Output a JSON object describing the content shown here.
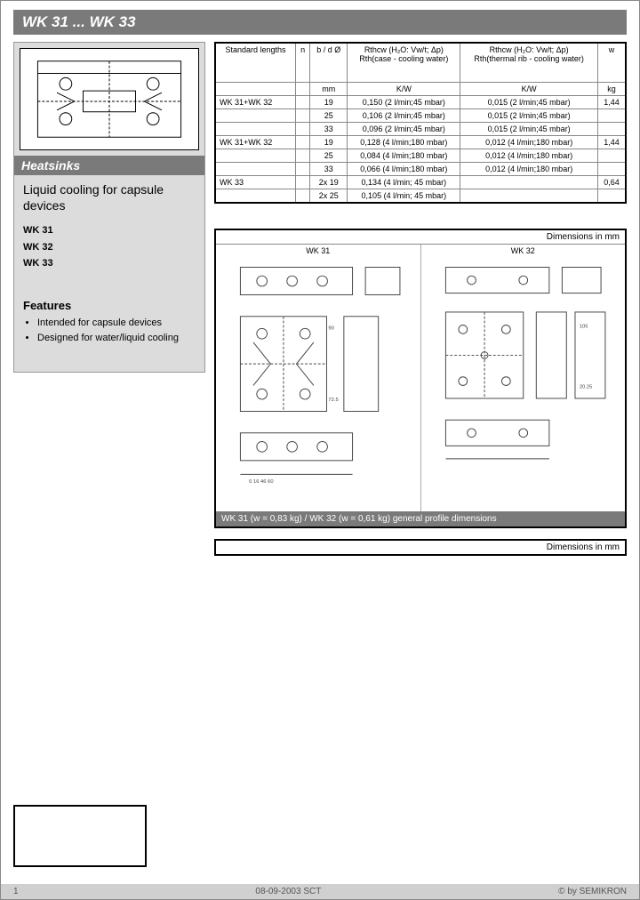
{
  "title": "WK 31 ... WK 33",
  "sidebar": {
    "section": "Heatsinks",
    "subtitle": "Liquid cooling for capsule devices",
    "models": [
      "WK 31",
      "WK 32",
      "WK 33"
    ],
    "features_heading": "Features",
    "features": [
      "Intended for capsule devices",
      "Designed for water/liquid cooling"
    ]
  },
  "table": {
    "headers": {
      "c0": "Standard lengths",
      "c1": "n",
      "c2": "b / d Ø",
      "c3_top": "Rthcw (H₂O: Vw/t; Δp)",
      "c3_mid": "Rth(case - cooling water)",
      "c4_top": "Rthcw (H₂O: Vw/t; Δp)",
      "c4_mid": "Rth(thermal rib - cooling water)",
      "c5": "w",
      "u2": "mm",
      "u3": "K/W",
      "u4": "K/W",
      "u5": "kg"
    },
    "rows": [
      {
        "c0": "WK 31+WK 32",
        "c1": "",
        "c2": "19",
        "c3": "0,150 (2 l/min;45 mbar)",
        "c4": "0,015 (2 l/min;45 mbar)",
        "c5": "1,44"
      },
      {
        "c0": "",
        "c1": "",
        "c2": "25",
        "c3": "0,106 (2 l/min;45 mbar)",
        "c4": "0,015 (2 l/min;45 mbar)",
        "c5": ""
      },
      {
        "c0": "",
        "c1": "",
        "c2": "33",
        "c3": "0,096 (2 l/min;45 mbar)",
        "c4": "0,015 (2 l/min;45 mbar)",
        "c5": ""
      },
      {
        "c0": "WK 31+WK 32",
        "c1": "",
        "c2": "19",
        "c3": "0,128 (4 l/min;180 mbar)",
        "c4": "0,012 (4 l/min;180 mbar)",
        "c5": "1,44"
      },
      {
        "c0": "",
        "c1": "",
        "c2": "25",
        "c3": "0,084 (4 l/min;180 mbar)",
        "c4": "0,012 (4 l/min;180 mbar)",
        "c5": ""
      },
      {
        "c0": "",
        "c1": "",
        "c2": "33",
        "c3": "0,066 (4 l/min;180 mbar)",
        "c4": "0,012 (4 l/min;180 mbar)",
        "c5": ""
      },
      {
        "c0": "WK 33",
        "c1": "",
        "c2": "2x 19",
        "c3": "0,134 (4 l/min; 45 mbar)",
        "c4": "",
        "c5": "0,64"
      },
      {
        "c0": "",
        "c1": "",
        "c2": "2x 25",
        "c3": "0,105 (4 l/min; 45 mbar)",
        "c4": "",
        "c5": ""
      }
    ]
  },
  "dimensions": {
    "header": "Dimensions in mm",
    "wk31_label": "WK 31",
    "wk32_label": "WK 32",
    "caption": "WK 31 (w = 0,83 kg) / WK 32 (w = 0,61 kg) general profile dimensions"
  },
  "dimensions2": {
    "header": "Dimensions in mm"
  },
  "footer": {
    "page": "1",
    "date": "08-09-2003  SCT",
    "copy": "© by SEMIKRON"
  },
  "styling": {
    "bar_bg": "#7a7a7a",
    "bar_fg": "#ffffff",
    "sidebar_bg": "#dcdcdc",
    "border": "#000000",
    "footer_bg": "#d0d0d0",
    "text": "#000000",
    "font_main": "Arial"
  }
}
